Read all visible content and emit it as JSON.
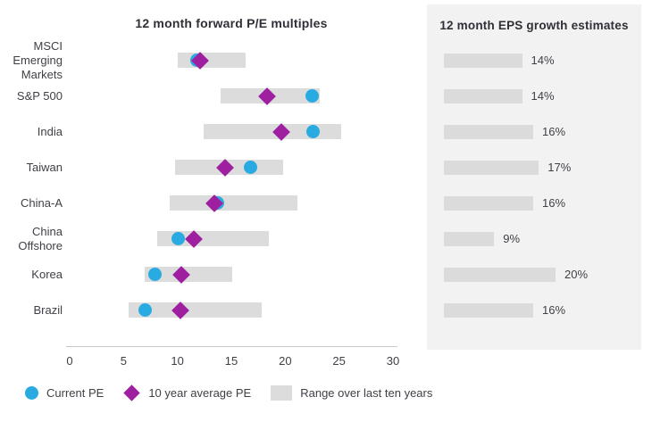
{
  "left_chart": {
    "title": "12 month forward P/E multiples"
  },
  "right_panel": {
    "title": "12 month EPS growth estimates"
  },
  "legend": {
    "current_pe_label": "Current PE",
    "avg_pe_label": "10 year average PE",
    "range_label": "Range over last ten years"
  },
  "colors": {
    "current_pe": "#29abe2",
    "avg_pe": "#9e20a0",
    "range_bar": "#dcdcdc",
    "panel_bg": "#f2f2f2",
    "panel_bar": "#dbdbdb"
  },
  "chart_data": [
    {
      "type": "scatter",
      "subtype": "dot-plot-with-range",
      "title": "12 month forward P/E multiples",
      "categories": [
        "MSCI Emerging Markets",
        "S&P 500",
        "India",
        "Taiwan",
        "China-A",
        "China Offshore",
        "Korea",
        "Brazil"
      ],
      "category_display": [
        "MSCI\nEmerging\nMarkets",
        "S&P 500",
        "India",
        "Taiwan",
        "China-A",
        "China\nOffshore",
        "Korea",
        "Brazil"
      ],
      "series": [
        {
          "name": "Current PE",
          "marker": "circle",
          "values": [
            11.8,
            22.5,
            22.6,
            16.8,
            13.7,
            10.1,
            7.9,
            7.0
          ]
        },
        {
          "name": "10 year average PE",
          "marker": "diamond",
          "values": [
            12.1,
            18.3,
            19.6,
            14.4,
            13.4,
            11.5,
            10.4,
            10.3
          ]
        },
        {
          "name": "Range over last ten years (low)",
          "marker": "bar-start",
          "values": [
            10.0,
            14.0,
            12.4,
            9.8,
            9.3,
            8.1,
            7.0,
            5.5
          ]
        },
        {
          "name": "Range over last ten years (high)",
          "marker": "bar-end",
          "values": [
            16.3,
            23.2,
            25.2,
            19.8,
            21.1,
            18.5,
            15.1,
            17.8
          ]
        }
      ],
      "xlim": [
        0,
        30
      ],
      "x_ticks": [
        "0",
        "5",
        "10",
        "15",
        "20",
        "25",
        "30"
      ],
      "xlabel": "",
      "ylabel": "",
      "grid": false,
      "legend_position": "bottom"
    },
    {
      "type": "bar",
      "orientation": "horizontal",
      "title": "12 month EPS growth estimates",
      "categories": [
        "MSCI Emerging Markets",
        "S&P 500",
        "India",
        "Taiwan",
        "China-A",
        "China Offshore",
        "Korea",
        "Brazil"
      ],
      "values": [
        14,
        14,
        16,
        17,
        16,
        9,
        20,
        16
      ],
      "labels": [
        "14%",
        "14%",
        "16%",
        "17%",
        "16%",
        "9%",
        "20%",
        "16%"
      ],
      "xlim": [
        0,
        32
      ],
      "grid": false
    }
  ]
}
